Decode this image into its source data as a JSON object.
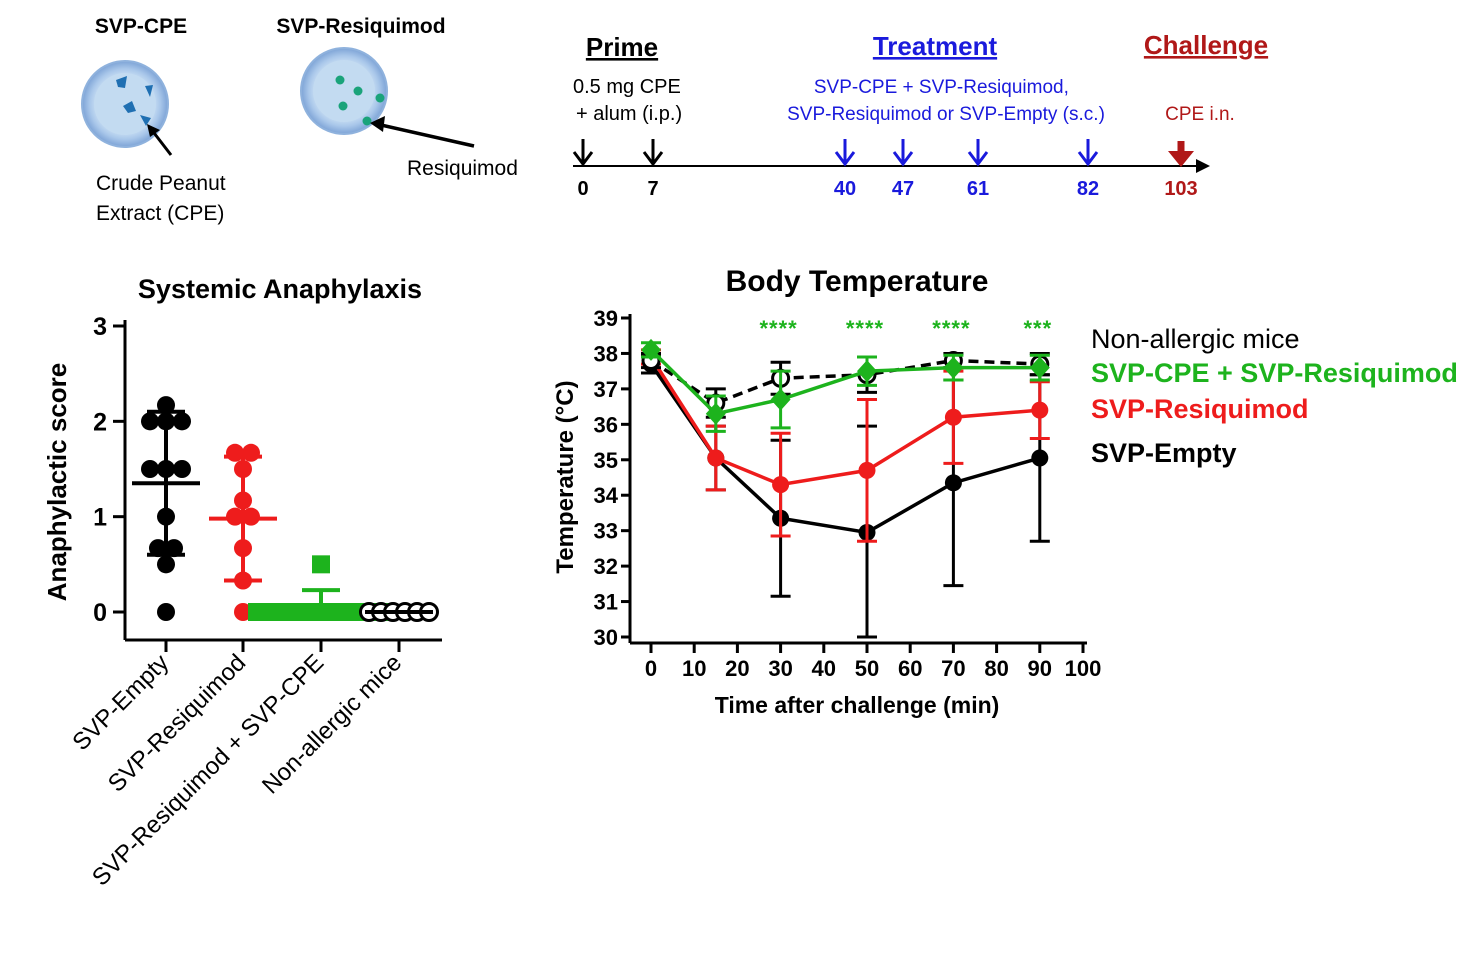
{
  "schematic": {
    "particle1": {
      "label": "SVP-CPE",
      "pointer": [
        "Crude Peanut",
        "Extract (CPE)"
      ],
      "cargo_color": "#1f6fb2"
    },
    "particle2": {
      "label": "SVP-Resiquimod",
      "pointer": "Resiquimod",
      "cargo_color": "#1aa37a"
    },
    "phases": [
      {
        "label": "Prime",
        "color": "#000000"
      },
      {
        "label": "Treatment",
        "color": "#1a1adc"
      },
      {
        "label": "Challenge",
        "color": "#b01818"
      }
    ],
    "prime_note": [
      "0.5 mg CPE",
      "+ alum (i.p.)"
    ],
    "treatment_note": [
      "SVP-CPE + SVP-Resiquimod,",
      "SVP-Resiquimod or SVP-Empty (s.c.)"
    ],
    "challenge_note": "CPE i.n.",
    "days": [
      {
        "label": "0",
        "color": "#000000"
      },
      {
        "label": "7",
        "color": "#000000"
      },
      {
        "label": "40",
        "color": "#1a1adc"
      },
      {
        "label": "47",
        "color": "#1a1adc"
      },
      {
        "label": "61",
        "color": "#1a1adc"
      },
      {
        "label": "82",
        "color": "#1a1adc"
      },
      {
        "label": "103",
        "color": "#b01818"
      }
    ]
  },
  "chart_data": [
    {
      "type": "scatter",
      "title": "Systemic Anaphylaxis",
      "ylabel": "Anaphylactic score",
      "xlabel": "",
      "ylim": [
        0,
        3
      ],
      "yticks": [
        "0",
        "1",
        "2",
        "3"
      ],
      "categories": [
        "SVP-Empty",
        "SVP-Resiquimod",
        "SVP-Resiquimod + SVP-CPE",
        "Non-allergic mice"
      ],
      "series": [
        {
          "category": "SVP-Empty",
          "color": "#000000",
          "marker": "circle",
          "points": [
            2.17,
            2.0,
            2.0,
            2.0,
            1.5,
            1.5,
            1.5,
            1.0,
            0.67,
            0.67,
            0.5,
            0.0
          ],
          "mean": 1.35,
          "sd": 0.75
        },
        {
          "category": "SVP-Resiquimod",
          "color": "#ee1c1c",
          "marker": "circle",
          "points": [
            1.67,
            1.67,
            1.5,
            1.17,
            1.0,
            1.0,
            0.67,
            0.33,
            0.0
          ],
          "mean": 0.98,
          "sd": 0.65
        },
        {
          "category": "SVP-Resiquimod + SVP-CPE",
          "color": "#1db31d",
          "marker": "square",
          "points": [
            0.5,
            0.0,
            0.0,
            0.0,
            0.0,
            0.0,
            0.0,
            0.0,
            0.0,
            0.0
          ],
          "mean": 0.06,
          "sd": 0.17
        },
        {
          "category": "Non-allergic mice",
          "color": "#000000",
          "marker": "open-circle",
          "points": [
            0,
            0,
            0,
            0,
            0,
            0
          ],
          "mean": 0.0,
          "sd": 0.0
        }
      ]
    },
    {
      "type": "line",
      "title": "Body Temperature",
      "xlabel": "Time after challenge (min)",
      "ylabel": "Temperature (°C)",
      "xlim": [
        0,
        100
      ],
      "ylim": [
        30,
        39
      ],
      "xticks": [
        0,
        10,
        20,
        30,
        40,
        50,
        60,
        70,
        80,
        90,
        100
      ],
      "yticks": [
        30,
        31,
        32,
        33,
        34,
        35,
        36,
        37,
        38,
        39
      ],
      "x": [
        0,
        15,
        30,
        50,
        70,
        90
      ],
      "significance": [
        {
          "x": 30,
          "label": "****"
        },
        {
          "x": 50,
          "label": "****"
        },
        {
          "x": 70,
          "label": "****"
        },
        {
          "x": 90,
          "label": "***"
        }
      ],
      "series": [
        {
          "name": "Non-allergic mice",
          "color": "#000000",
          "dash": true,
          "marker": "open-circle",
          "y": [
            37.8,
            36.6,
            37.3,
            37.4,
            37.8,
            37.7
          ],
          "err": [
            0.2,
            0.4,
            0.45,
            0.5,
            0.2,
            0.3
          ]
        },
        {
          "name": "SVP-CPE + SVP-Resiquimod",
          "color": "#1db31d",
          "dash": false,
          "marker": "diamond",
          "y": [
            38.1,
            36.3,
            36.7,
            37.5,
            37.6,
            37.6
          ],
          "err": [
            0.2,
            0.5,
            0.8,
            0.4,
            0.35,
            0.35
          ]
        },
        {
          "name": "SVP-Resiquimod",
          "color": "#ee1c1c",
          "dash": false,
          "marker": "circle",
          "y": [
            37.9,
            35.05,
            34.3,
            34.7,
            36.2,
            36.4
          ],
          "err": [
            0.2,
            0.9,
            1.45,
            2.0,
            1.3,
            0.8
          ]
        },
        {
          "name": "SVP-Empty",
          "color": "#000000",
          "dash": false,
          "marker": "circle",
          "y": [
            37.7,
            35.05,
            33.35,
            32.95,
            34.35,
            35.05
          ],
          "err": [
            0.25,
            0.9,
            2.2,
            3.0,
            2.9,
            2.35
          ]
        }
      ]
    }
  ]
}
